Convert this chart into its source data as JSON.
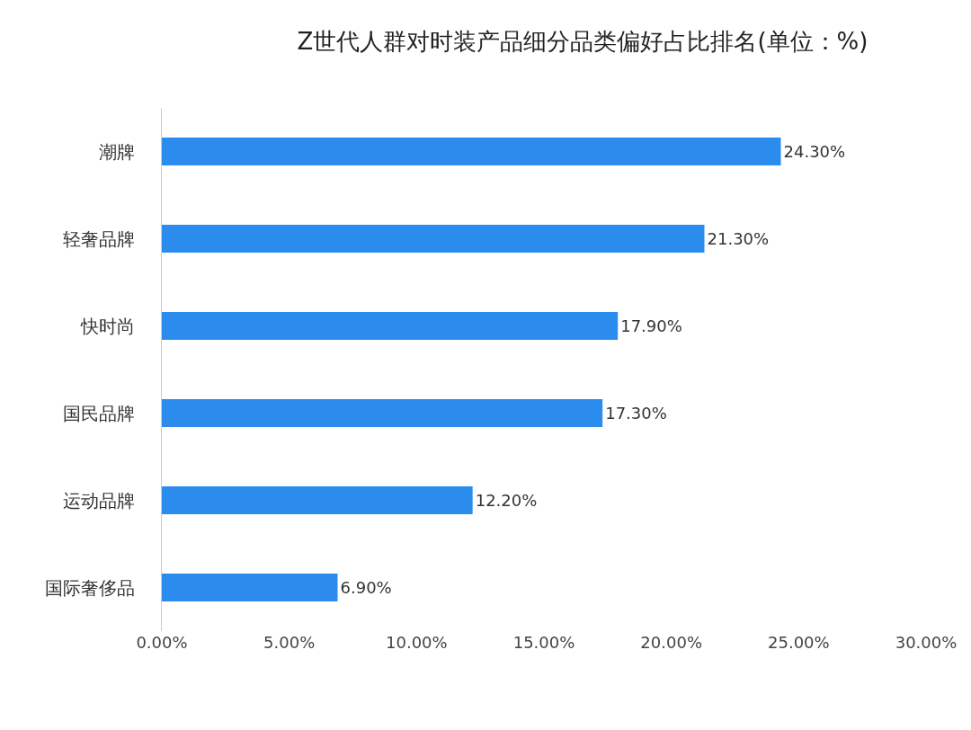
{
  "chart_data": {
    "type": "bar",
    "orientation": "horizontal",
    "title": "Z世代人群对时装产品细分品类偏好占比排名(单位：%)",
    "categories": [
      "潮牌",
      "轻奢品牌",
      "快时尚",
      "国民品牌",
      "运动品牌",
      "国际奢侈品"
    ],
    "values": [
      24.3,
      21.3,
      17.9,
      17.3,
      12.2,
      6.9
    ],
    "value_labels": [
      "24.30%",
      "21.30%",
      "17.90%",
      "17.30%",
      "12.20%",
      "6.90%"
    ],
    "color": "#2b8ced",
    "xlim": [
      0,
      30
    ],
    "xticks": [
      {
        "value": 0,
        "label": "0.00%"
      },
      {
        "value": 5,
        "label": "5.00%"
      },
      {
        "value": 10,
        "label": "10.00%"
      },
      {
        "value": 15,
        "label": "15.00%"
      },
      {
        "value": 20,
        "label": "20.00%"
      },
      {
        "value": 25,
        "label": "25.00%"
      },
      {
        "value": 30,
        "label": "30.00%"
      }
    ],
    "grid": false,
    "legend": false
  }
}
